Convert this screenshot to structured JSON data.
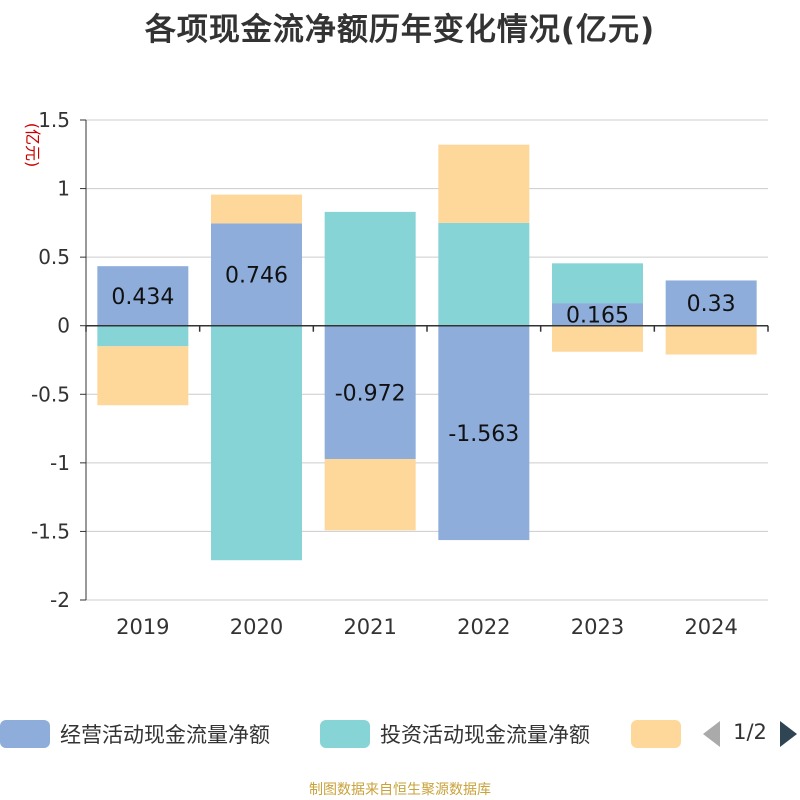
{
  "title": "各项现金流净额历年变化情况(亿元)",
  "source": "制图数据来自恒生聚源数据库",
  "pager": {
    "label": "1/2"
  },
  "colors": {
    "operating": "#8eaddb",
    "investing": "#86d4d6",
    "financing": "#fed89a",
    "axis": "#333333",
    "grid": "#cccccc",
    "unit": "#cc0000"
  },
  "chart_data": {
    "type": "bar",
    "stacked": true,
    "title": "各项现金流净额历年变化情况(亿元)",
    "ylabel": "(亿元)",
    "ylim": [
      -2,
      1.5
    ],
    "yticks": [
      "1.5",
      "1",
      "0.5",
      "0",
      "-0.5",
      "-1",
      "-1.5",
      "-2"
    ],
    "ytick_values": [
      1.5,
      1,
      0.5,
      0,
      -0.5,
      -1,
      -1.5,
      -2
    ],
    "categories": [
      "2019",
      "2020",
      "2021",
      "2022",
      "2023",
      "2024"
    ],
    "series": [
      {
        "name": "经营活动现金流量净额",
        "key": "operating",
        "values": [
          0.434,
          0.746,
          -0.972,
          -1.563,
          0.165,
          0.33
        ],
        "labels": [
          "0.434",
          "0.746",
          "-0.972",
          "-1.563",
          "0.165",
          "0.33"
        ]
      },
      {
        "name": "投资活动现金流量净额",
        "key": "investing",
        "values": [
          -0.15,
          -1.71,
          0.83,
          0.75,
          0.29,
          0.0
        ]
      },
      {
        "name": "",
        "key": "financing",
        "values": [
          -0.43,
          0.21,
          -0.52,
          0.57,
          -0.19,
          -0.21
        ]
      }
    ],
    "legend": [
      {
        "label": "经营活动现金流量净额",
        "key": "operating"
      },
      {
        "label": "投资活动现金流量净额",
        "key": "investing"
      },
      {
        "label": "",
        "key": "financing"
      }
    ]
  }
}
